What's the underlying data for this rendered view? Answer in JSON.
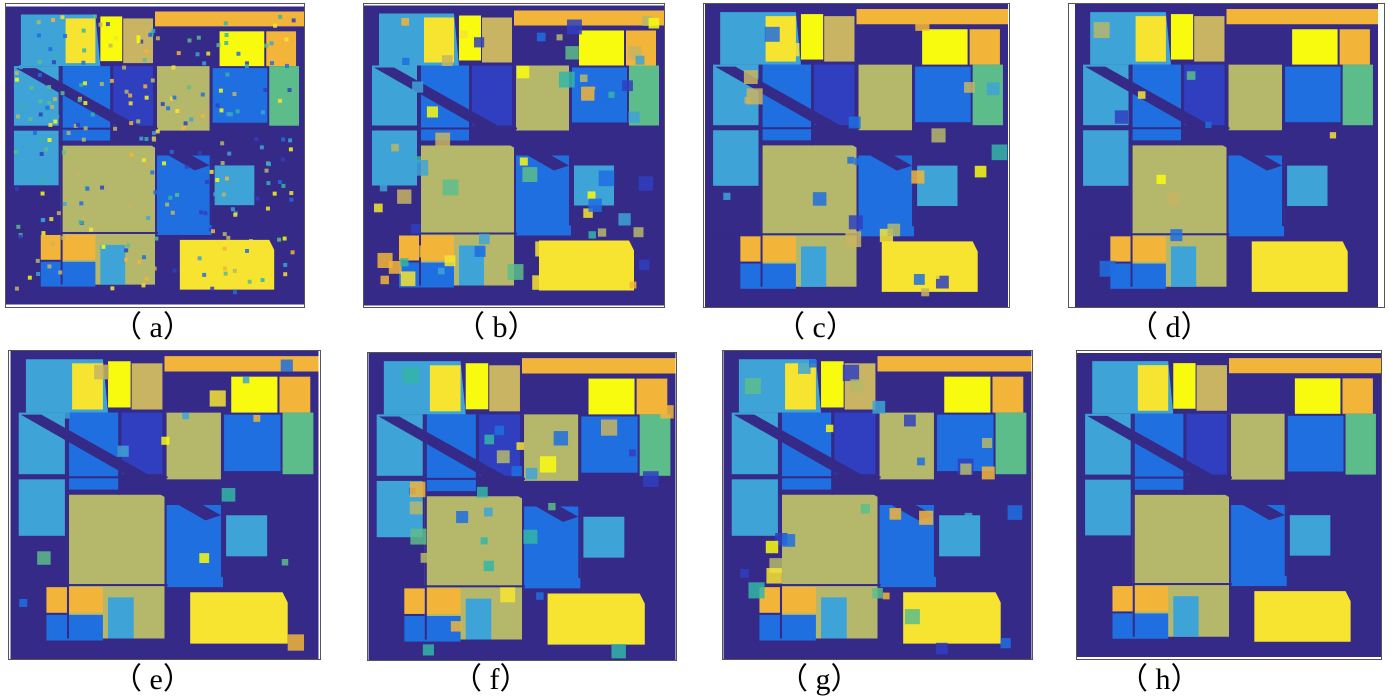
{
  "figure": {
    "panels": [
      {
        "id": "a",
        "label": "（ a）"
      },
      {
        "id": "b",
        "label": "（ b）"
      },
      {
        "id": "c",
        "label": "（ c）"
      },
      {
        "id": "d",
        "label": "（ d）"
      },
      {
        "id": "e",
        "label": "（ e）"
      },
      {
        "id": "f",
        "label": "（ f）"
      },
      {
        "id": "g",
        "label": "（ g）"
      },
      {
        "id": "h",
        "label": "（ h）"
      }
    ]
  },
  "colors": {
    "background": "#352a87",
    "dark_blue": "#2f3fbf",
    "blue": "#1f6fe0",
    "light_blue": "#3ea3d6",
    "teal": "#33b6a7",
    "green_teal": "#5cbd8b",
    "olive": "#b5b86a",
    "khaki": "#c8b462",
    "orange": "#f2b53a",
    "yellow": "#f7e431",
    "bright_yellow": "#f9fb0e"
  }
}
